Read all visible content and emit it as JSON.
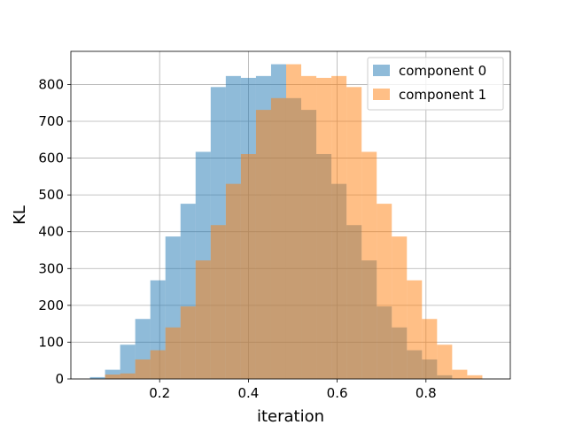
{
  "chart_data": {
    "type": "bar",
    "title": "",
    "xlabel": "iteration",
    "ylabel": "KL",
    "xlim": [
      0.0,
      0.99
    ],
    "ylim": [
      0,
      890
    ],
    "xticks": [
      0.2,
      0.4,
      0.6,
      0.8
    ],
    "xtick_labels": [
      "0.2",
      "0.4",
      "0.6",
      "0.8"
    ],
    "yticks": [
      0,
      100,
      200,
      300,
      400,
      500,
      600,
      700,
      800
    ],
    "ytick_labels": [
      "0",
      "100",
      "200",
      "300",
      "400",
      "500",
      "600",
      "700",
      "800"
    ],
    "grid": true,
    "legend_placement": "top-right",
    "series": [
      {
        "name": "component 0",
        "color": "#1f77b4",
        "alpha": 0.5,
        "bin_start": 0.043,
        "bin_width": 0.034,
        "values": [
          5,
          25,
          93,
          163,
          268,
          387,
          476,
          617,
          793,
          823,
          818,
          823,
          855,
          763,
          731,
          611,
          530,
          418,
          322,
          197,
          140,
          78,
          53,
          10
        ]
      },
      {
        "name": "component 1",
        "color": "#ff7f0e",
        "alpha": 0.5,
        "bin_start": 0.077,
        "bin_width": 0.034,
        "values": [
          12,
          15,
          53,
          78,
          140,
          197,
          322,
          418,
          530,
          611,
          731,
          763,
          855,
          823,
          818,
          823,
          793,
          617,
          476,
          387,
          268,
          163,
          93,
          25,
          10
        ]
      }
    ]
  }
}
